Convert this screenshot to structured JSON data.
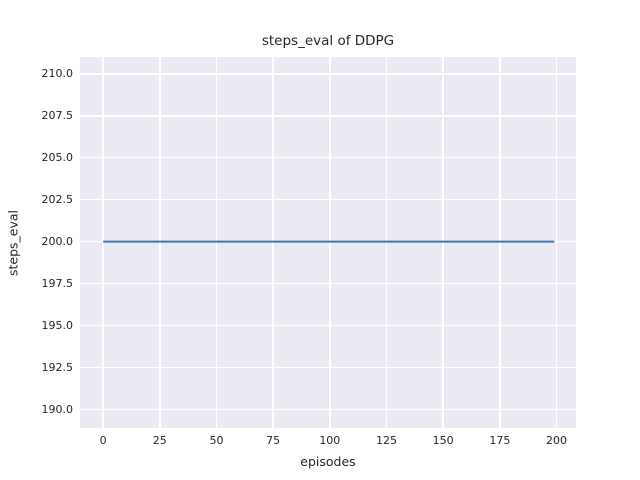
{
  "chart_data": {
    "type": "line",
    "title": "steps_eval of DDPG",
    "xlabel": "episodes",
    "ylabel": "steps_eval",
    "x_tick_values": [
      0,
      25,
      50,
      75,
      100,
      125,
      150,
      175,
      200
    ],
    "x_tick_labels": [
      "0",
      "25",
      "50",
      "75",
      "100",
      "125",
      "150",
      "175",
      "200"
    ],
    "y_tick_values": [
      190.0,
      192.5,
      195.0,
      197.5,
      200.0,
      202.5,
      205.0,
      207.5,
      210.0
    ],
    "y_tick_labels": [
      "190.0",
      "192.5",
      "195.0",
      "197.5",
      "200.0",
      "202.5",
      "205.0",
      "207.5",
      "210.0"
    ],
    "xlim": [
      -10.2,
      208.6
    ],
    "ylim": [
      188.9,
      211.0
    ],
    "grid": true,
    "legend": "none",
    "plot_bg_color": "#eaeaf2",
    "grid_color": "#ffffff",
    "text_color": "#262626",
    "series": [
      {
        "name": "DDPG",
        "color": "#4c72b0",
        "line_width": 2,
        "x": [
          0,
          199
        ],
        "y": [
          200,
          200
        ]
      }
    ]
  }
}
